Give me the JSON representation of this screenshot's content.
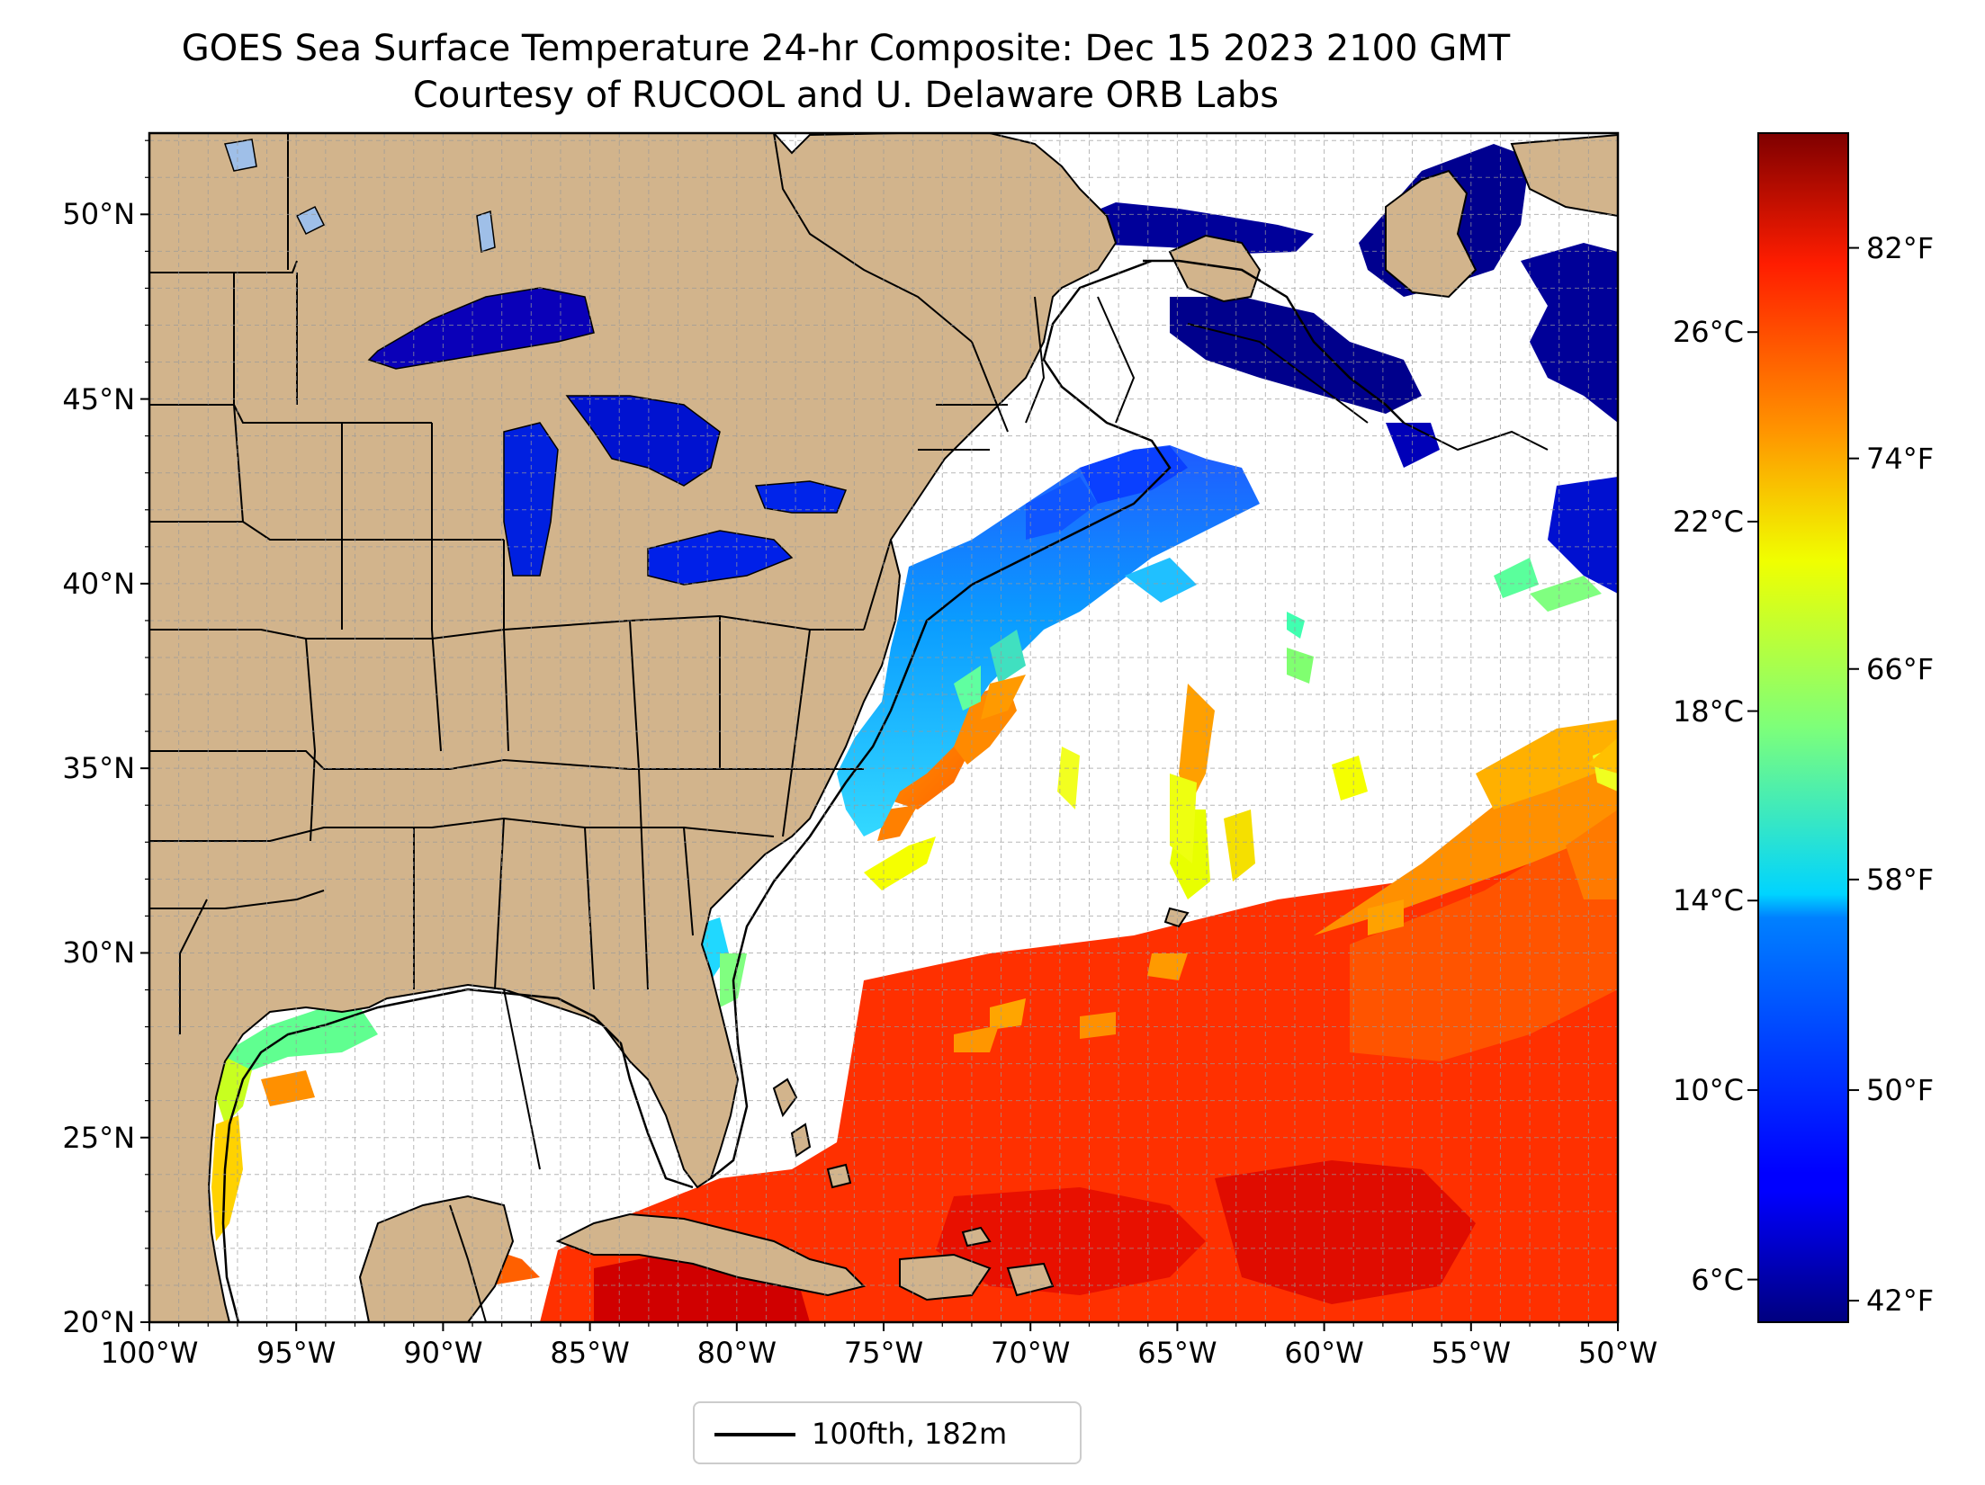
{
  "title": {
    "line1": "GOES Sea Surface Temperature 24-hr Composite: Dec 15 2023 2100 GMT",
    "line2": "Courtesy of RUCOOL and U. Delaware ORB Labs"
  },
  "map": {
    "lon_range": [
      -100,
      -50
    ],
    "lat_range": [
      20,
      52.2
    ],
    "x_ticks": [
      {
        "value": -100,
        "label": "100°W"
      },
      {
        "value": -95,
        "label": "95°W"
      },
      {
        "value": -90,
        "label": "90°W"
      },
      {
        "value": -85,
        "label": "85°W"
      },
      {
        "value": -80,
        "label": "80°W"
      },
      {
        "value": -75,
        "label": "75°W"
      },
      {
        "value": -70,
        "label": "70°W"
      },
      {
        "value": -65,
        "label": "65°W"
      },
      {
        "value": -60,
        "label": "60°W"
      },
      {
        "value": -55,
        "label": "55°W"
      },
      {
        "value": -50,
        "label": "50°W"
      }
    ],
    "y_ticks": [
      {
        "value": 20,
        "label": "20°N"
      },
      {
        "value": 25,
        "label": "25°N"
      },
      {
        "value": 30,
        "label": "30°N"
      },
      {
        "value": 35,
        "label": "35°N"
      },
      {
        "value": 40,
        "label": "40°N"
      },
      {
        "value": 45,
        "label": "45°N"
      },
      {
        "value": 50,
        "label": "50°N"
      }
    ],
    "land_color": "#d2b48c",
    "ocean_nodata_color": "#ffffff",
    "lake_nodata_color": "#9fbfe8",
    "gridlines": "dashed, every 1 degree",
    "features": [
      "coastlines",
      "state and province borders",
      "100 fathom isobath",
      "sea surface temperature"
    ]
  },
  "colorbar": {
    "colormap": "jet",
    "left_ticks": [
      {
        "value": 6,
        "label": "6°C"
      },
      {
        "value": 10,
        "label": "10°C"
      },
      {
        "value": 14,
        "label": "14°C"
      },
      {
        "value": 18,
        "label": "18°C"
      },
      {
        "value": 22,
        "label": "22°C"
      },
      {
        "value": 26,
        "label": "26°C"
      }
    ],
    "right_ticks": [
      {
        "value_f": 42,
        "label": "42°F"
      },
      {
        "value_f": 50,
        "label": "50°F"
      },
      {
        "value_f": 58,
        "label": "58°F"
      },
      {
        "value_f": 66,
        "label": "66°F"
      },
      {
        "value_f": 74,
        "label": "74°F"
      },
      {
        "value_f": 82,
        "label": "82°F"
      }
    ],
    "range_c": [
      5.1,
      30.2
    ]
  },
  "legend": {
    "label": "100fth, 182m",
    "line_color": "#000000"
  }
}
